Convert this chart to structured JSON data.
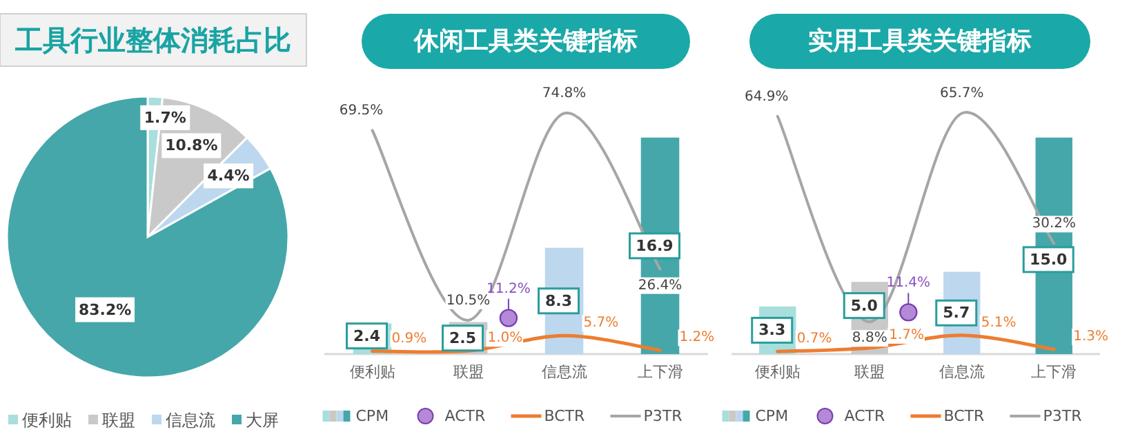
{
  "chart_data": [
    {
      "type": "pie",
      "title": "工具行业整体消耗占比",
      "categories": [
        "便利贴",
        "联盟",
        "信息流",
        "大屏"
      ],
      "values": [
        1.7,
        10.8,
        4.4,
        83.2
      ],
      "colors": [
        "#a8dedc",
        "#c9c9c9",
        "#bdd7ee",
        "#45a7aa"
      ],
      "value_labels": [
        "1.7%",
        "10.8%",
        "4.4%",
        "83.2%"
      ],
      "legend": "bottom"
    },
    {
      "type": "bar",
      "title": "休闲工具类关键指标",
      "categories": [
        "便利贴",
        "联盟",
        "信息流",
        "上下滑"
      ],
      "tick_labels": "x",
      "legend": "bottom",
      "series": [
        {
          "name": "CPM",
          "type": "bar",
          "colors": [
            "#a8dedc",
            "#c9c9c9",
            "#bdd7ee",
            "#45a7aa"
          ],
          "values": [
            2.4,
            2.5,
            8.3,
            16.9
          ],
          "value_labels": [
            "2.4",
            "2.5",
            "8.3",
            "16.9"
          ]
        },
        {
          "name": "ACTR",
          "type": "scatter",
          "axis": "y2",
          "marker": "circle",
          "color": "#b48ad8",
          "values": [
            null,
            11.2,
            null,
            null
          ],
          "value_labels": [
            null,
            "11.2%",
            null,
            null
          ]
        },
        {
          "name": "BCTR",
          "type": "line",
          "axis": "y2",
          "color": "#ed7d31",
          "values": [
            0.9,
            1.0,
            5.7,
            1.2
          ],
          "value_labels": [
            "0.9%",
            "1.0%",
            "5.7%",
            "1.2%"
          ]
        },
        {
          "name": "P3TR",
          "type": "line",
          "axis": "y2",
          "color": "#a6a6a6",
          "values": [
            69.5,
            10.5,
            74.8,
            26.4
          ],
          "value_labels": [
            "69.5%",
            "10.5%",
            "74.8%",
            "26.4%"
          ]
        }
      ]
    },
    {
      "type": "bar",
      "title": "实用工具类关键指标",
      "categories": [
        "便利贴",
        "联盟",
        "信息流",
        "上下滑"
      ],
      "tick_labels": "x",
      "legend": "bottom",
      "series": [
        {
          "name": "CPM",
          "type": "bar",
          "colors": [
            "#a8dedc",
            "#c9c9c9",
            "#bdd7ee",
            "#45a7aa"
          ],
          "values": [
            3.3,
            5.0,
            5.7,
            15.0
          ],
          "value_labels": [
            "3.3",
            "5.0",
            "5.7",
            "15.0"
          ]
        },
        {
          "name": "ACTR",
          "type": "scatter",
          "axis": "y2",
          "marker": "circle",
          "color": "#b48ad8",
          "values": [
            null,
            11.4,
            null,
            null
          ],
          "value_labels": [
            null,
            "11.4%",
            null,
            null
          ]
        },
        {
          "name": "BCTR",
          "type": "line",
          "axis": "y2",
          "color": "#ed7d31",
          "values": [
            0.7,
            1.7,
            5.1,
            1.3
          ],
          "value_labels": [
            "0.7%",
            "1.7%",
            "5.1%",
            "1.3%"
          ]
        },
        {
          "name": "P3TR",
          "type": "line",
          "axis": "y2",
          "color": "#a6a6a6",
          "values": [
            64.9,
            8.8,
            65.7,
            30.2
          ],
          "value_labels": [
            "64.9%",
            "8.8%",
            "65.7%",
            "30.2%"
          ]
        }
      ]
    }
  ]
}
